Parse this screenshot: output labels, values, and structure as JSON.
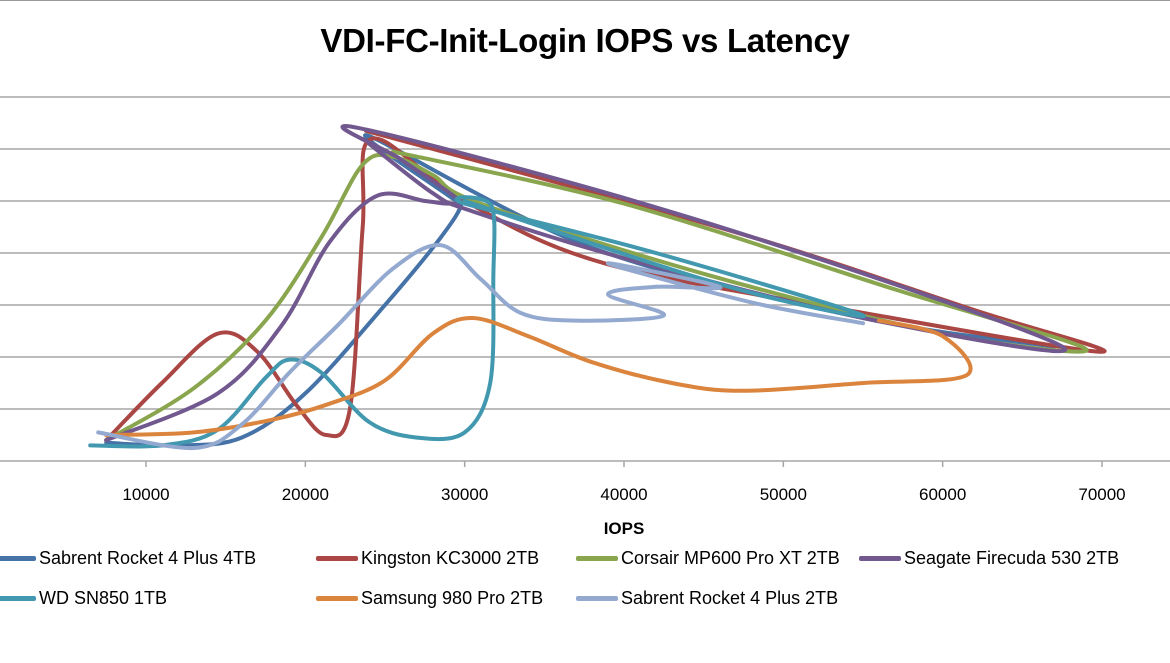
{
  "chart_data": {
    "type": "line",
    "subtype": "scatter-smooth-lines",
    "title": "VDI-FC-Init-Login IOPS vs Latency",
    "xlabel": "IOPS",
    "ylabel": "",
    "xlim": [
      0,
      75000
    ],
    "x_ticks": [
      10000,
      20000,
      30000,
      40000,
      50000,
      60000,
      70000
    ],
    "x_tick_labels": [
      "10000",
      "20000",
      "30000",
      "40000",
      "50000",
      "60000",
      "70000"
    ],
    "y_units_note": "latency axis labels not visible; values in relative gridline units (0 = x-axis, 7 = top gridline)",
    "ylim": [
      0,
      7
    ],
    "y_gridlines": [
      1,
      2,
      3,
      4,
      5,
      6,
      7
    ],
    "grid": true,
    "legend_position": "bottom",
    "series": [
      {
        "name": "Sabrent Rocket 4 Plus 4TB",
        "color": "#4572A7",
        "points": [
          [
            7500,
            0.35
          ],
          [
            12000,
            0.3
          ],
          [
            16000,
            0.45
          ],
          [
            20000,
            1.3
          ],
          [
            25000,
            3.0
          ],
          [
            28500,
            4.3
          ],
          [
            29800,
            4.95
          ],
          [
            29000,
            5.1
          ],
          [
            24000,
            6.25
          ],
          [
            38000,
            4.1
          ],
          [
            55000,
            2.75
          ],
          [
            67000,
            2.2
          ]
        ]
      },
      {
        "name": "Kingston KC3000 2TB",
        "color": "#AA4643",
        "points": [
          [
            7500,
            0.4
          ],
          [
            11000,
            1.5
          ],
          [
            14500,
            2.45
          ],
          [
            17000,
            2.1
          ],
          [
            19500,
            1.05
          ],
          [
            21300,
            0.5
          ],
          [
            22800,
            1.0
          ],
          [
            23600,
            4.5
          ],
          [
            24200,
            6.2
          ],
          [
            30000,
            5.0
          ],
          [
            38800,
            3.8
          ],
          [
            55000,
            2.85
          ],
          [
            70000,
            2.1
          ],
          [
            62000,
            2.9
          ],
          [
            47000,
            4.4
          ],
          [
            23800,
            6.35
          ]
        ]
      },
      {
        "name": "Corsair MP600 Pro XT 2TB",
        "color": "#89A54E",
        "points": [
          [
            7500,
            0.4
          ],
          [
            13000,
            1.4
          ],
          [
            17500,
            2.7
          ],
          [
            21000,
            4.3
          ],
          [
            23600,
            5.7
          ],
          [
            25500,
            5.85
          ],
          [
            28000,
            5.5
          ],
          [
            31000,
            4.95
          ],
          [
            45000,
            3.6
          ],
          [
            60000,
            2.45
          ],
          [
            69000,
            2.15
          ],
          [
            57000,
            3.3
          ],
          [
            40000,
            4.95
          ],
          [
            25500,
            5.95
          ]
        ]
      },
      {
        "name": "Seagate Firecuda 530 2TB",
        "color": "#71588F",
        "points": [
          [
            7500,
            0.4
          ],
          [
            14500,
            1.3
          ],
          [
            18500,
            2.6
          ],
          [
            21500,
            4.2
          ],
          [
            24500,
            5.1
          ],
          [
            27500,
            5.0
          ],
          [
            29000,
            4.95
          ],
          [
            29500,
            5.05
          ],
          [
            26000,
            5.8
          ],
          [
            23400,
            6.4
          ],
          [
            45000,
            4.6
          ],
          [
            67500,
            2.2
          ],
          [
            55000,
            2.75
          ],
          [
            40000,
            3.9
          ],
          [
            30500,
            4.8
          ],
          [
            28000,
            5.15
          ],
          [
            24000,
            6.1
          ]
        ]
      },
      {
        "name": "WD SN850 1TB",
        "color": "#4198AF",
        "points": [
          [
            6500,
            0.3
          ],
          [
            11000,
            0.3
          ],
          [
            14500,
            0.6
          ],
          [
            17500,
            1.6
          ],
          [
            19000,
            1.95
          ],
          [
            21000,
            1.7
          ],
          [
            24000,
            0.75
          ],
          [
            27000,
            0.45
          ],
          [
            30000,
            0.55
          ],
          [
            31600,
            1.5
          ],
          [
            31800,
            3.5
          ],
          [
            31700,
            4.9
          ],
          [
            30000,
            4.95
          ],
          [
            42000,
            4.0
          ],
          [
            55000,
            2.8
          ],
          [
            46000,
            3.4
          ],
          [
            30000,
            5.0
          ]
        ]
      },
      {
        "name": "Samsung 980 Pro 2TB",
        "color": "#DB843D",
        "points": [
          [
            7500,
            0.5
          ],
          [
            13000,
            0.55
          ],
          [
            18000,
            0.8
          ],
          [
            21500,
            1.1
          ],
          [
            25000,
            1.55
          ],
          [
            28000,
            2.45
          ],
          [
            30500,
            2.75
          ],
          [
            34000,
            2.4
          ],
          [
            38000,
            1.9
          ],
          [
            43000,
            1.5
          ],
          [
            47500,
            1.35
          ],
          [
            55000,
            1.5
          ],
          [
            61500,
            1.65
          ],
          [
            60000,
            2.4
          ],
          [
            56000,
            2.7
          ]
        ]
      },
      {
        "name": "Sabrent Rocket 4 Plus 2TB",
        "color": "#93A9CF",
        "points": [
          [
            7000,
            0.55
          ],
          [
            13000,
            0.25
          ],
          [
            16000,
            0.7
          ],
          [
            19000,
            1.7
          ],
          [
            22000,
            2.6
          ],
          [
            25500,
            3.7
          ],
          [
            28500,
            4.15
          ],
          [
            31000,
            3.5
          ],
          [
            33500,
            2.85
          ],
          [
            37000,
            2.7
          ],
          [
            42500,
            2.8
          ],
          [
            39000,
            3.2
          ],
          [
            42000,
            3.35
          ],
          [
            46000,
            3.35
          ],
          [
            39000,
            3.8
          ],
          [
            48000,
            3.05
          ],
          [
            55000,
            2.65
          ]
        ]
      }
    ]
  }
}
